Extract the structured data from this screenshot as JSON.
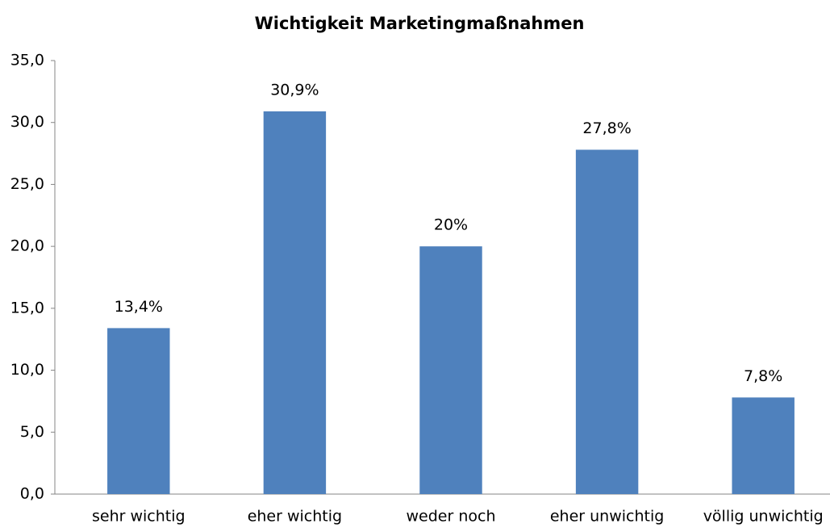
{
  "chart_data": {
    "type": "bar",
    "title": "Wichtigkeit Marketingmaßnahmen",
    "categories": [
      "sehr wichtig",
      "eher wichtig",
      "weder noch",
      "eher unwichtig",
      "völlig unwichtig"
    ],
    "values": [
      13.4,
      30.9,
      20,
      27.8,
      7.8
    ],
    "value_labels": [
      "13,4%",
      "30,9%",
      "20%",
      "27,8%",
      "7,8%"
    ],
    "color": "#4f81bd",
    "ylim": [
      0,
      35
    ],
    "yticks": [
      {
        "value": 0,
        "label": "0,0"
      },
      {
        "value": 5,
        "label": "5,0"
      },
      {
        "value": 10,
        "label": "10,0"
      },
      {
        "value": 15,
        "label": "15,0"
      },
      {
        "value": 20,
        "label": "20,0"
      },
      {
        "value": 25,
        "label": "25,0"
      },
      {
        "value": 30,
        "label": "30,0"
      },
      {
        "value": 35,
        "label": "35,0"
      }
    ],
    "grid": false
  }
}
